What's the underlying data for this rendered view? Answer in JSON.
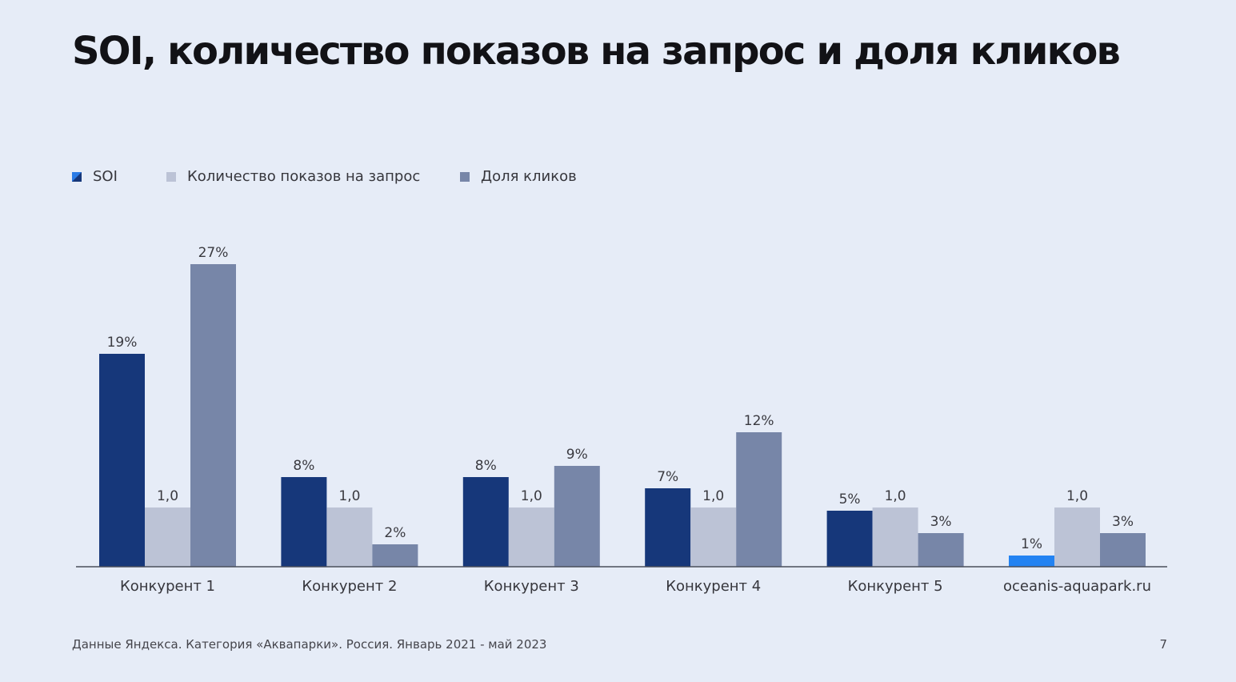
{
  "slide": {
    "title": "SOI, количество показов на запрос и доля кликов",
    "footer": "Данные Яндекса. Категория «Аквапарки». Россия. Январь 2021 - май 2023",
    "page_number": "7"
  },
  "colors": {
    "background": "#e6ecf7",
    "soi": "#16377a",
    "soi_highlight": "#2383f2",
    "impressions": "#bcc3d6",
    "click_share": "#7786a8",
    "axis": "#4a4f5c"
  },
  "legend": [
    {
      "label": "SOI",
      "key": "soi"
    },
    {
      "label": "Количество показов на запрос",
      "key": "impressions"
    },
    {
      "label": "Доля кликов",
      "key": "click_share"
    }
  ],
  "chart_data": {
    "type": "bar",
    "title": "SOI, количество показов на запрос и доля кликов",
    "legend_position": "top-left",
    "grid": false,
    "categories": [
      "Конкурент 1",
      "Конкурент 2",
      "Конкурент 3",
      "Конкурент 4",
      "Конкурент 5",
      "oceanis-aquapark.ru"
    ],
    "highlight_category": "oceanis-aquapark.ru",
    "series": [
      {
        "name": "SOI",
        "values": [
          19,
          8,
          8,
          7,
          5,
          1
        ],
        "labels": [
          "19%",
          "8%",
          "8%",
          "7%",
          "5%",
          "1%"
        ],
        "unit": "%"
      },
      {
        "name": "Количество показов на запрос",
        "values": [
          1.0,
          1.0,
          1.0,
          1.0,
          1.0,
          1.0
        ],
        "labels": [
          "1,0",
          "1,0",
          "1,0",
          "1,0",
          "1,0",
          "1,0"
        ]
      },
      {
        "name": "Доля кликов",
        "values": [
          27,
          2,
          9,
          12,
          3,
          3
        ],
        "labels": [
          "27%",
          "2%",
          "9%",
          "12%",
          "3%",
          "3%"
        ],
        "unit": "%"
      }
    ]
  }
}
